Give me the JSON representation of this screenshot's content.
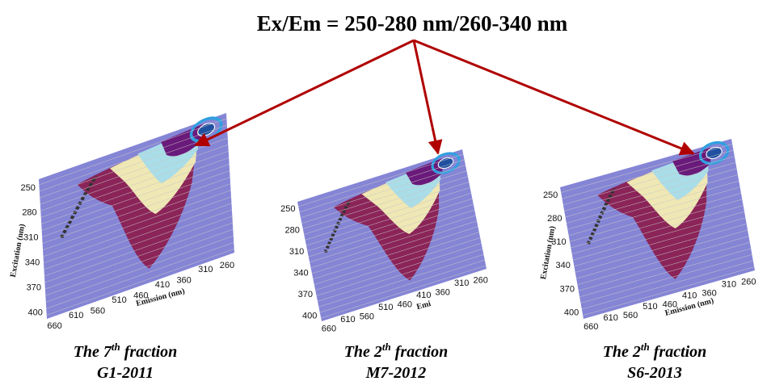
{
  "title": "Ex/Em = 250-280 nm/260-340 nm",
  "panels": [
    {
      "caption_start": "The 7",
      "caption_sup": "th",
      "caption_end": " fraction",
      "sample": "G1-2011",
      "y_ticks": [
        "250",
        "280",
        "310",
        "340",
        "370",
        "400"
      ],
      "x_ticks": [
        "660",
        "610",
        "560",
        "510",
        "460",
        "410",
        "360",
        "310",
        "260"
      ],
      "y_axis_label": "Excitation (nm)",
      "x_axis_label": "Emission (nm)"
    },
    {
      "caption_start": "The 2",
      "caption_sup": "th",
      "caption_end": " fraction",
      "sample": "M7-2012",
      "y_ticks": [
        "250",
        "280",
        "310",
        "340",
        "370",
        "400"
      ],
      "x_ticks": [
        "660",
        "610",
        "560",
        "510",
        "460",
        "410",
        "360",
        "310",
        "260"
      ],
      "x_axis_label": "Emi"
    },
    {
      "caption_start": "The 2",
      "caption_sup": "th",
      "caption_end": " fraction",
      "sample": "S6-2013",
      "y_ticks": [
        "250",
        "280",
        "310",
        "340",
        "370",
        "400"
      ],
      "x_ticks": [
        "660",
        "610",
        "560",
        "510",
        "460",
        "410",
        "360",
        "310",
        "260"
      ],
      "y_axis_label": "Excitation (nm)",
      "x_axis_label": "Emission (nm)"
    }
  ]
}
